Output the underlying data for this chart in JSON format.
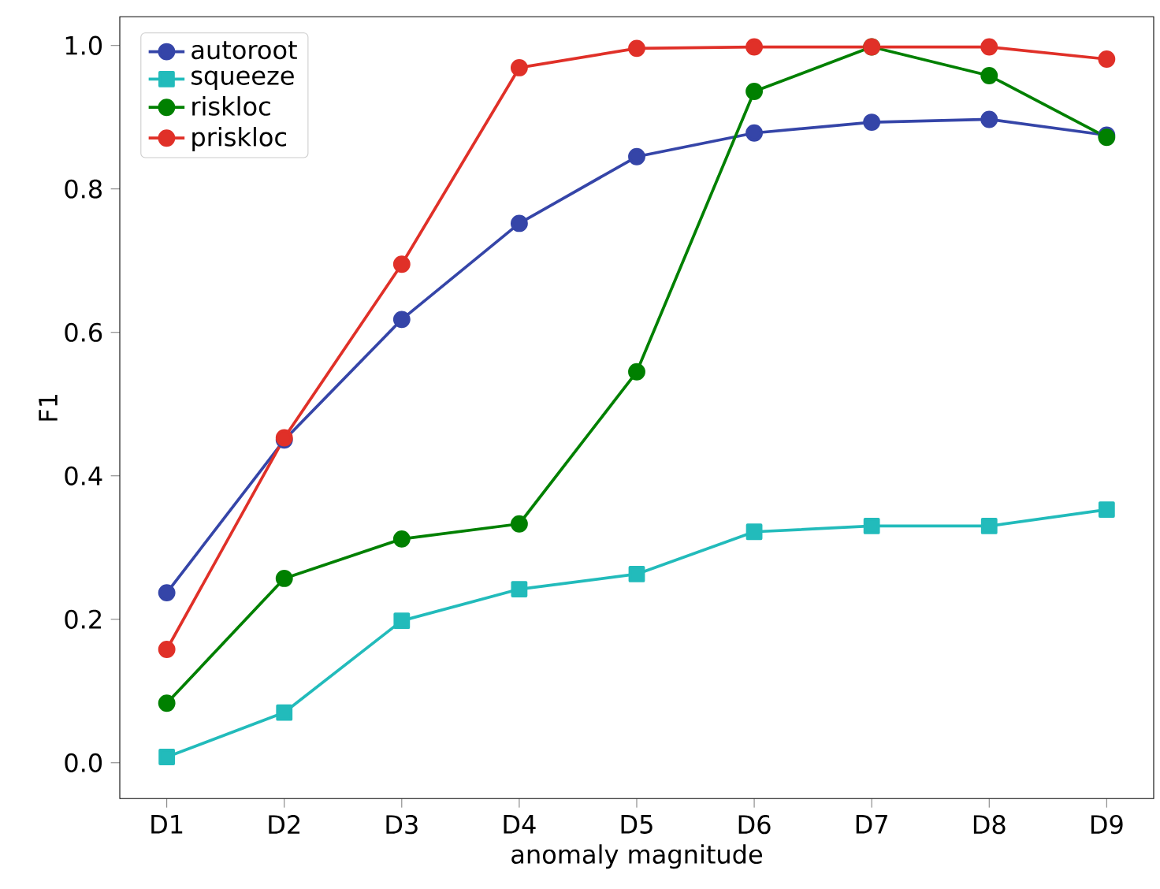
{
  "chart_data": {
    "type": "line",
    "xlabel": "anomaly magnitude",
    "ylabel": "F1",
    "categories": [
      "D1",
      "D2",
      "D3",
      "D4",
      "D5",
      "D6",
      "D7",
      "D8",
      "D9"
    ],
    "series": [
      {
        "name": "autoroot",
        "color": "#3545a8",
        "marker": "circle",
        "values": [
          0.237,
          0.45,
          0.618,
          0.752,
          0.845,
          0.878,
          0.893,
          0.897,
          0.875
        ]
      },
      {
        "name": "squeeze",
        "color": "#22bbbb",
        "marker": "square",
        "values": [
          0.008,
          0.07,
          0.198,
          0.242,
          0.263,
          0.322,
          0.33,
          0.33,
          0.353
        ]
      },
      {
        "name": "riskloc",
        "color": "#008000",
        "marker": "circle",
        "values": [
          0.083,
          0.257,
          0.312,
          0.333,
          0.545,
          0.936,
          0.998,
          0.958,
          0.872
        ]
      },
      {
        "name": "priskloc",
        "color": "#e03028",
        "marker": "circle",
        "values": [
          0.158,
          0.453,
          0.695,
          0.969,
          0.996,
          0.998,
          0.998,
          0.998,
          0.981
        ]
      }
    ],
    "ylim": [
      -0.05,
      1.04
    ],
    "yticks": [
      {
        "value": 0.0,
        "label": "0.0"
      },
      {
        "value": 0.2,
        "label": "0.2"
      },
      {
        "value": 0.4,
        "label": "0.4"
      },
      {
        "value": 0.6,
        "label": "0.6"
      },
      {
        "value": 0.8,
        "label": "0.8"
      },
      {
        "value": 1.0,
        "label": "1.0"
      }
    ],
    "grid": false,
    "legend": "top left",
    "line_style": "solid"
  }
}
